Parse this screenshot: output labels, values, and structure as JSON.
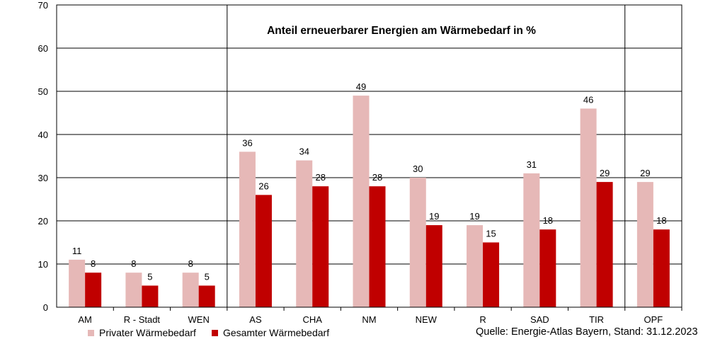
{
  "chart_data": {
    "type": "bar",
    "title": "Anteil erneuerbarer Energien am Wärmebedarf in %",
    "categories": [
      "AM",
      "R - Stadt",
      "WEN",
      "AS",
      "CHA",
      "NM",
      "NEW",
      "R",
      "SAD",
      "TIR",
      "OPF"
    ],
    "series": [
      {
        "name": "Privater Wärmebedarf",
        "color": "#e6b8b7",
        "values": [
          11,
          8,
          8,
          36,
          34,
          49,
          30,
          19,
          31,
          46,
          29
        ]
      },
      {
        "name": "Gesamter Wärmebedarf",
        "color": "#c00000",
        "values": [
          8,
          5,
          5,
          26,
          28,
          28,
          19,
          15,
          18,
          29,
          18
        ]
      }
    ],
    "y_ticks": [
      "0",
      "10",
      "20",
      "30",
      "40",
      "50",
      "60",
      "70"
    ],
    "ylim": [
      0,
      70
    ],
    "grid": true,
    "group_separators_after": [
      "WEN",
      "TIR"
    ],
    "legend_position": "bottom-left"
  },
  "source": "Quelle: Energie-Atlas Bayern, Stand: 31.12.2023"
}
